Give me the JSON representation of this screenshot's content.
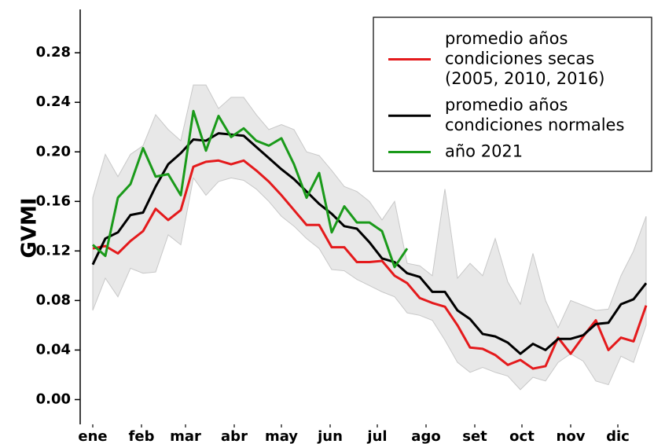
{
  "chart_data": {
    "type": "line",
    "y_label": "GVMI",
    "x": [
      1,
      2,
      3,
      4,
      5,
      6,
      7,
      8,
      9,
      10,
      11,
      12,
      13,
      14,
      15,
      16,
      17,
      18,
      19,
      20,
      21,
      22,
      23,
      24,
      25,
      26,
      27,
      28,
      29,
      30,
      31,
      32,
      33,
      34,
      35,
      36,
      37,
      38,
      39,
      40,
      41,
      42,
      43,
      44,
      45
    ],
    "xlim": [
      0,
      45.625
    ],
    "xticks": [
      {
        "value": 1,
        "label": "ene"
      },
      {
        "value": 4.875,
        "label": "feb"
      },
      {
        "value": 8.375,
        "label": "mar"
      },
      {
        "value": 12.25,
        "label": "abr"
      },
      {
        "value": 16,
        "label": "may"
      },
      {
        "value": 19.875,
        "label": "jun"
      },
      {
        "value": 23.625,
        "label": "jul"
      },
      {
        "value": 27.5,
        "label": "ago"
      },
      {
        "value": 31.375,
        "label": "set"
      },
      {
        "value": 35.125,
        "label": "oct"
      },
      {
        "value": 39,
        "label": "nov"
      },
      {
        "value": 42.75,
        "label": "dic"
      }
    ],
    "ylim": [
      -0.02,
      0.315
    ],
    "yticks": [
      {
        "value": 0,
        "label": "0.00"
      },
      {
        "value": 0.04,
        "label": "0.04"
      },
      {
        "value": 0.08,
        "label": "0.08"
      },
      {
        "value": 0.12,
        "label": "0.12"
      },
      {
        "value": 0.16,
        "label": "0.16"
      },
      {
        "value": 0.2,
        "label": "0.20"
      },
      {
        "value": 0.24,
        "label": "0.24"
      },
      {
        "value": 0.28,
        "label": "0.28"
      }
    ],
    "band": {
      "color": "#e8e8e8",
      "edge": "#c8c8c8",
      "upper": [
        0.163,
        0.198,
        0.18,
        0.198,
        0.205,
        0.23,
        0.218,
        0.209,
        0.254,
        0.254,
        0.235,
        0.244,
        0.244,
        0.23,
        0.218,
        0.222,
        0.218,
        0.2,
        0.197,
        0.185,
        0.172,
        0.168,
        0.16,
        0.145,
        0.16,
        0.11,
        0.108,
        0.1,
        0.17,
        0.098,
        0.11,
        0.1,
        0.13,
        0.095,
        0.077,
        0.118,
        0.08,
        0.058,
        0.08,
        0.076,
        0.072,
        0.073,
        0.1,
        0.12,
        0.148
      ],
      "lower": [
        0.072,
        0.098,
        0.083,
        0.106,
        0.102,
        0.103,
        0.133,
        0.125,
        0.179,
        0.165,
        0.176,
        0.179,
        0.177,
        0.17,
        0.16,
        0.148,
        0.14,
        0.13,
        0.122,
        0.105,
        0.104,
        0.097,
        0.092,
        0.087,
        0.083,
        0.07,
        0.068,
        0.064,
        0.048,
        0.03,
        0.022,
        0.026,
        0.022,
        0.019,
        0.008,
        0.018,
        0.015,
        0.03,
        0.037,
        0.031,
        0.015,
        0.012,
        0.035,
        0.03,
        0.06
      ]
    },
    "series": [
      {
        "name": "promedio años\ncondiciones secas\n(2005, 2010, 2016)",
        "color": "#e41a1c",
        "values": [
          0.122,
          0.124,
          0.118,
          0.128,
          0.136,
          0.154,
          0.145,
          0.153,
          0.188,
          0.192,
          0.193,
          0.19,
          0.193,
          0.185,
          0.176,
          0.165,
          0.153,
          0.141,
          0.141,
          0.123,
          0.123,
          0.111,
          0.111,
          0.112,
          0.1,
          0.094,
          0.082,
          0.078,
          0.075,
          0.06,
          0.042,
          0.041,
          0.036,
          0.028,
          0.032,
          0.025,
          0.027,
          0.05,
          0.037,
          0.051,
          0.064,
          0.04,
          0.05,
          0.047,
          0.076
        ]
      },
      {
        "name": "promedio años\ncondiciones normales",
        "color": "#000000",
        "values": [
          0.109,
          0.13,
          0.135,
          0.149,
          0.151,
          0.172,
          0.19,
          0.199,
          0.21,
          0.209,
          0.215,
          0.214,
          0.213,
          0.204,
          0.195,
          0.186,
          0.178,
          0.168,
          0.158,
          0.15,
          0.14,
          0.138,
          0.127,
          0.114,
          0.111,
          0.102,
          0.099,
          0.087,
          0.087,
          0.072,
          0.065,
          0.053,
          0.051,
          0.046,
          0.037,
          0.045,
          0.04,
          0.049,
          0.049,
          0.052,
          0.061,
          0.062,
          0.077,
          0.081,
          0.094
        ]
      },
      {
        "name": "año 2021",
        "color": "#1a9a1a",
        "values": [
          0.125,
          0.116,
          0.163,
          0.174,
          0.203,
          0.18,
          0.182,
          0.165,
          0.233,
          0.201,
          0.229,
          0.212,
          0.219,
          0.209,
          0.205,
          0.211,
          0.19,
          0.163,
          0.183,
          0.135,
          0.156,
          0.143,
          0.143,
          0.136,
          0.107,
          0.122,
          null,
          null,
          null,
          null,
          null,
          null,
          null,
          null,
          null,
          null,
          null,
          null,
          null,
          null,
          null,
          null,
          null,
          null,
          null
        ]
      }
    ]
  }
}
